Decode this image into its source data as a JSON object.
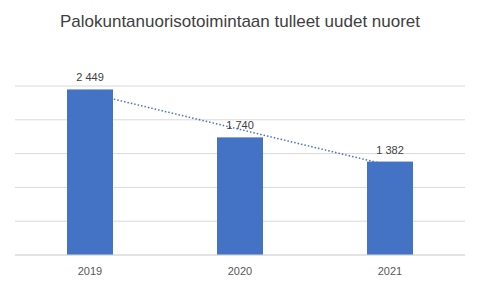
{
  "chart_data": {
    "type": "bar",
    "title": "Palokuntanuorisotoimintaan tulleet uudet nuoret",
    "categories": [
      "2019",
      "2020",
      "2021"
    ],
    "values": [
      2449,
      1740,
      1382
    ],
    "value_labels": [
      "2 449",
      "1 740",
      "1 382"
    ],
    "color": "#4472c4",
    "ylim": [
      0,
      2500
    ],
    "yticks": [
      0,
      500,
      1000,
      1500,
      2000,
      2500
    ],
    "grid": true,
    "data_labels": true,
    "tick_labels": "x"
  }
}
